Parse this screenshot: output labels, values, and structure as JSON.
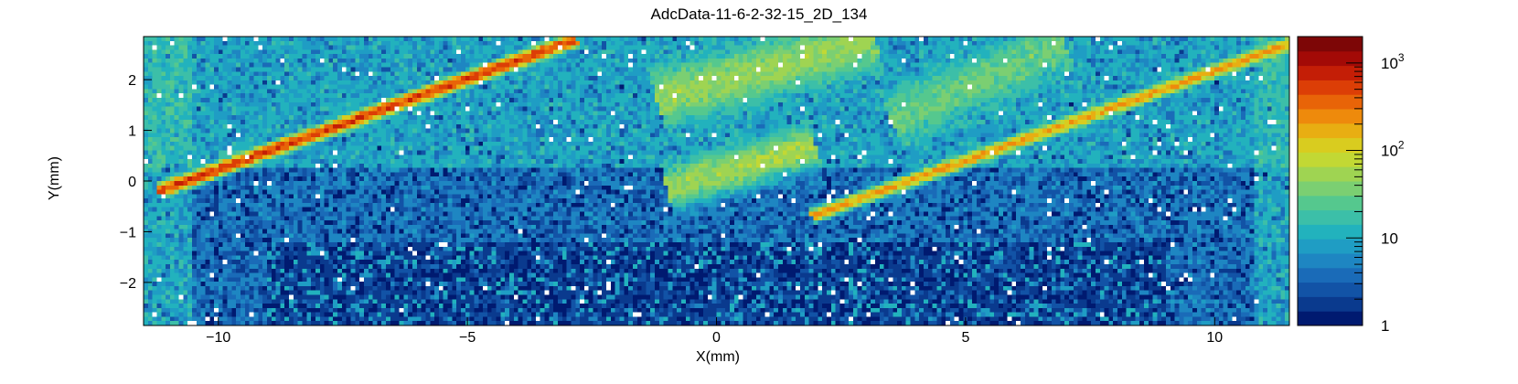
{
  "chart_data": {
    "type": "heatmap",
    "title": "AdcData-11-6-2-32-15_2D_134",
    "xlabel": "X(mm)",
    "ylabel": "Y(mm)",
    "xlim": [
      -11.5,
      11.5
    ],
    "ylim": [
      -2.85,
      2.85
    ],
    "x_ticks": [
      -10,
      -5,
      0,
      5,
      10
    ],
    "x_tick_labels": [
      "−10",
      "−5",
      "0",
      "5",
      "10"
    ],
    "y_ticks": [
      -2,
      -1,
      0,
      1,
      2
    ],
    "y_tick_labels": [
      "−2",
      "−1",
      "0",
      "1",
      "2"
    ],
    "z_scale": "log",
    "z_range": [
      1,
      2000
    ],
    "colorbar_ticks": [
      {
        "value": 1,
        "label": "1"
      },
      {
        "value": 10,
        "label": "10"
      },
      {
        "value": 100,
        "label": "10",
        "sup": "2"
      },
      {
        "value": 1000,
        "label": "10",
        "sup": "3"
      }
    ],
    "colormap": [
      "#001a70",
      "#0a3a8e",
      "#1253a6",
      "#1a6bb8",
      "#1e86c2",
      "#1f9dc4",
      "#22b2bd",
      "#3cbfa8",
      "#55c88e",
      "#7bcf72",
      "#9fd452",
      "#c2d834",
      "#d9cc1f",
      "#e8ae12",
      "#ee8a0c",
      "#e86408",
      "#dc3e06",
      "#c41e06",
      "#a30a06",
      "#7d0606"
    ],
    "grid": false,
    "features": [
      {
        "kind": "track",
        "x": [
          -11.2,
          -2.8
        ],
        "y": [
          -0.2,
          2.8
        ],
        "peak": 600,
        "width": 0.06
      },
      {
        "kind": "track",
        "x": [
          1.9,
          11.5
        ],
        "y": [
          -0.7,
          2.7
        ],
        "peak": 220,
        "width": 0.06
      },
      {
        "kind": "band",
        "x": [
          -1.0,
          2.0
        ],
        "y": [
          -0.15,
          0.7
        ],
        "peak": 55,
        "width": 0.22
      },
      {
        "kind": "band",
        "x": [
          -1.2,
          3.2
        ],
        "y": [
          1.6,
          2.8
        ],
        "peak": 45,
        "width": 0.3
      },
      {
        "kind": "band",
        "x": [
          3.5,
          7.0
        ],
        "y": [
          1.2,
          2.7
        ],
        "peak": 25,
        "width": 0.3
      }
    ]
  }
}
